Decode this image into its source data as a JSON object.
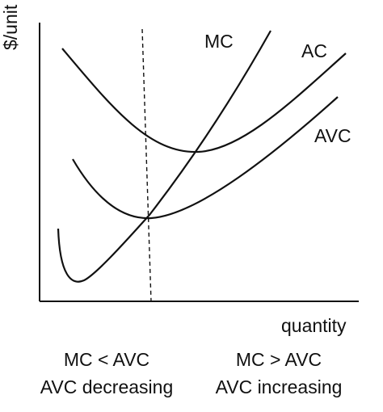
{
  "labels": {
    "y_axis": "$/unit",
    "x_axis": "quantity",
    "mc": "MC",
    "ac": "AC",
    "avc": "AVC"
  },
  "annotations": {
    "left_line1": "MC < AVC",
    "left_line2": "AVC decreasing",
    "right_line1": "MC > AVC",
    "right_line2": "AVC increasing"
  },
  "colors": {
    "ink": "#111111",
    "background": "#ffffff"
  }
}
